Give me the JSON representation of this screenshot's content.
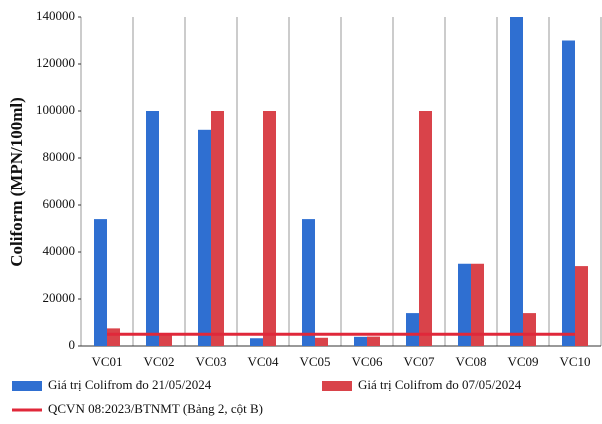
{
  "chart_data": {
    "type": "bar",
    "y_label": "Coliform (MPN/100ml)",
    "categories": [
      "VC01",
      "VC02",
      "VC03",
      "VC04",
      "VC05",
      "VC06",
      "VC07",
      "VC08",
      "VC09",
      "VC10"
    ],
    "series": [
      {
        "name": "Giá trị Colifrom đo 21/05/2024",
        "color": "#2f6fd1",
        "values": [
          54000,
          100000,
          92000,
          3300,
          54000,
          3900,
          14000,
          35000,
          140000,
          130000
        ]
      },
      {
        "name": "Giá trị Colifrom đo 07/05/2024",
        "color": "#d9434a",
        "values": [
          7500,
          5000,
          100000,
          100000,
          3500,
          4000,
          100000,
          35000,
          14000,
          34000
        ]
      },
      {
        "name": "QCVN 08:2023/BTNMT (Bảng 2, cột B)",
        "color": "#e0283a",
        "type": "line",
        "values": [
          5000,
          5000,
          5000,
          5000,
          5000,
          5000,
          5000,
          5000,
          5000,
          5000
        ]
      }
    ],
    "ylim": [
      0,
      140000
    ],
    "yticks": [
      0,
      20000,
      40000,
      60000,
      80000,
      100000,
      120000,
      140000
    ]
  }
}
